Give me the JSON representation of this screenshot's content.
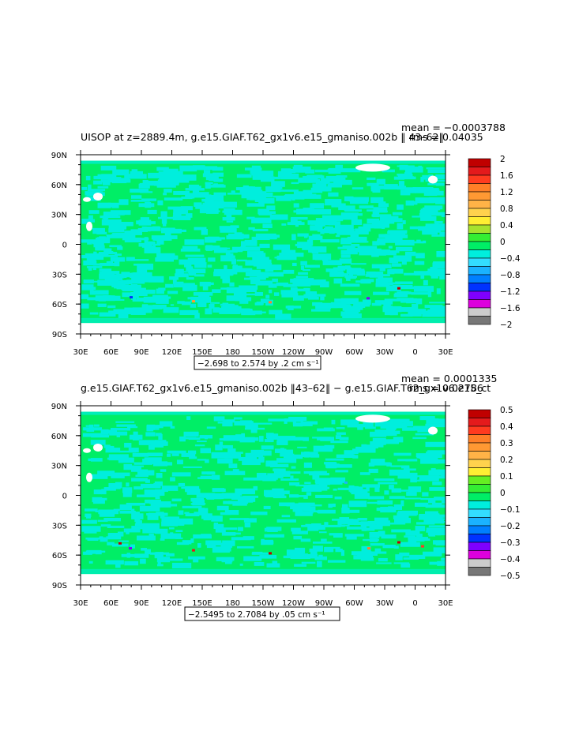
{
  "chart_data": [
    {
      "type": "heatmap",
      "title": "UISOP at z=2889.4m, g.e15.GIAF.T62_gx1v6.e15_gmaniso.002b ‖ 43–62‖",
      "mean_text": "mean = −0.0003788",
      "rms_text": "rms = 0.04035",
      "range_text": "−2.698 to 2.574 by .2 cm s⁻¹",
      "x_ticks": [
        "30E",
        "60E",
        "90E",
        "120E",
        "150E",
        "180",
        "150W",
        "120W",
        "90W",
        "60W",
        "30W",
        "0",
        "30E"
      ],
      "y_ticks": [
        "90N",
        "60N",
        "30N",
        "0",
        "30S",
        "60S",
        "90S"
      ],
      "colorbar": {
        "labels": [
          "2",
          "1.6",
          "1.2",
          "0.8",
          "0.4",
          "0",
          "−0.4",
          "−0.8",
          "−1.2",
          "−1.6",
          "−2"
        ],
        "colors": [
          "#c00000",
          "#e41a1c",
          "#ff3b1f",
          "#ff7f27",
          "#ff9933",
          "#ffb347",
          "#ffd24d",
          "#ffee33",
          "#a6e22e",
          "#33ee33",
          "#00ee66",
          "#00eedd",
          "#33ddff",
          "#1ab2ff",
          "#007fff",
          "#0033ff",
          "#7f00ff",
          "#dd00dd",
          "#cccccc",
          "#777777"
        ]
      }
    },
    {
      "type": "heatmap",
      "title": "g.e15.GIAF.T62_gx1v6.e15_gmaniso.002b ‖43–62‖ − g.e15.GIAF.T62_gx1v6.e15_ct",
      "mean_text": "mean = 0.0001335",
      "rms_text": "rms = 0.02786",
      "range_text": "−2.5495 to 2.7084 by .05 cm s⁻¹",
      "x_ticks": [
        "30E",
        "60E",
        "90E",
        "120E",
        "150E",
        "180",
        "150W",
        "120W",
        "90W",
        "60W",
        "30W",
        "0",
        "30E"
      ],
      "y_ticks": [
        "90N",
        "60N",
        "30N",
        "0",
        "30S",
        "60S",
        "90S"
      ],
      "colorbar": {
        "labels": [
          "0.5",
          "0.4",
          "0.3",
          "0.2",
          "0.1",
          "0",
          "−0.1",
          "−0.2",
          "−0.3",
          "−0.4",
          "−0.5"
        ],
        "colors": [
          "#c00000",
          "#e41a1c",
          "#ff3b1f",
          "#ff7f27",
          "#ff9933",
          "#ffb347",
          "#ffd24d",
          "#ffee33",
          "#66ee22",
          "#33ee33",
          "#00ee66",
          "#00eedd",
          "#33ddff",
          "#1ab2ff",
          "#007fff",
          "#0033ff",
          "#7f00ff",
          "#dd00dd",
          "#cccccc",
          "#777777"
        ]
      }
    }
  ]
}
